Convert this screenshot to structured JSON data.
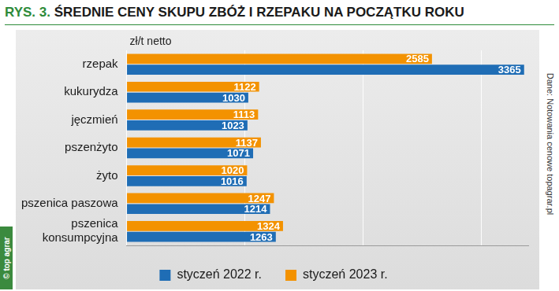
{
  "chart_data": {
    "type": "bar",
    "orientation": "horizontal",
    "title": "RYS. 3. ŚREDNIE CENY SKUPU ZBÓŻ I RZEPAKU NA POCZĄTKU ROKU",
    "xlabel": "zł/t netto",
    "annotations": [
      "Dane: Notowania cenowe topagrar.pl",
      "© top agrar"
    ],
    "categories": [
      "rzepak",
      "kukurydza",
      "jęczmień",
      "pszenżyto",
      "żyto",
      "pszenica paszowa",
      "pszenica konsumpcyjna"
    ],
    "series": [
      {
        "name": "styczeń 2022 r.",
        "color": "#1f6db5",
        "values": [
          3365,
          1030,
          1023,
          1071,
          1016,
          1214,
          1263
        ]
      },
      {
        "name": "styczeń 2023 r.",
        "color": "#f39200",
        "values": [
          2585,
          1122,
          1113,
          1137,
          1020,
          1247,
          1324
        ]
      }
    ],
    "xlim": [
      0,
      3400
    ],
    "xticks": [
      0,
      1000,
      2000,
      3000
    ],
    "grid": true,
    "legend": "bottom",
    "data_labels": true,
    "tick_labels": "y"
  }
}
